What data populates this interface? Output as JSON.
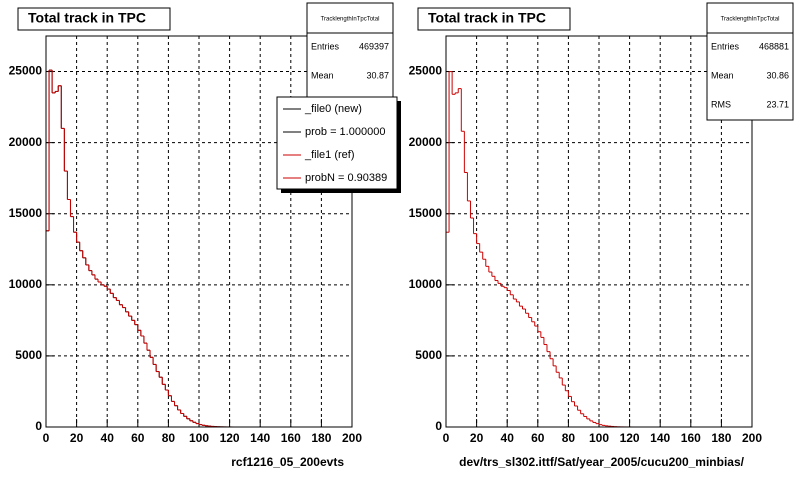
{
  "chart_data": [
    {
      "type": "histogram",
      "title": "Total track in TPC",
      "xlabel": "rcf1216_05_200evts",
      "bins": [
        0,
        2,
        4,
        6,
        8,
        10,
        12,
        14,
        16,
        18,
        20,
        22,
        24,
        26,
        28,
        30,
        32,
        34,
        36,
        38,
        40,
        42,
        44,
        46,
        48,
        50,
        52,
        54,
        56,
        58,
        60,
        62,
        64,
        66,
        68,
        70,
        72,
        74,
        76,
        78,
        80,
        82,
        84,
        86,
        88,
        90,
        92,
        94,
        96,
        98,
        100,
        102,
        104,
        106,
        108,
        110,
        112,
        114,
        116,
        118,
        120,
        122,
        124,
        126,
        128,
        130,
        132,
        134,
        136,
        138,
        140,
        142,
        144,
        146,
        148,
        150,
        152,
        154,
        156,
        158,
        160,
        162,
        164,
        166,
        168,
        170,
        172,
        174,
        176,
        178,
        180,
        182,
        184,
        186,
        188,
        190,
        192,
        194,
        196,
        198,
        200
      ],
      "xlim": [
        0,
        200
      ],
      "xticks": [
        0,
        20,
        40,
        60,
        80,
        100,
        120,
        140,
        160,
        180,
        200
      ],
      "ylim": [
        0,
        27500
      ],
      "yticks": [
        0,
        5000,
        10000,
        15000,
        20000,
        25000
      ],
      "grid": true,
      "stats": {
        "title": "TracklengthInTpcTotal",
        "rows": [
          {
            "label": "Entries",
            "value": 469397
          },
          {
            "label": "Mean",
            "value": 30.87
          }
        ]
      },
      "series": [
        {
          "name": "_file0 (new)",
          "note": "prob = 1.000000",
          "color": "#000000",
          "values": [
            13800,
            25100,
            23500,
            23600,
            24000,
            21000,
            18000,
            16000,
            14800,
            13700,
            13000,
            12400,
            11900,
            11400,
            11000,
            10700,
            10400,
            10200,
            10000,
            9900,
            9700,
            9400,
            9100,
            8900,
            8600,
            8400,
            8100,
            7800,
            7500,
            7200,
            6800,
            6400,
            5900,
            5400,
            4900,
            4400,
            3900,
            3500,
            3000,
            2600,
            2200,
            1800,
            1500,
            1200,
            950,
            750,
            580,
            440,
            330,
            240,
            170,
            120,
            85,
            60,
            40,
            25,
            15,
            10,
            6,
            3,
            2,
            0,
            0,
            0,
            0,
            0,
            0,
            0,
            0,
            0,
            0,
            0,
            0,
            0,
            0,
            0,
            0,
            0,
            0,
            0,
            0,
            0,
            0,
            0,
            0,
            0,
            0,
            0,
            0,
            0,
            0,
            0,
            0,
            0,
            0,
            0,
            0,
            0,
            0,
            0
          ]
        },
        {
          "name": "_file1 (ref)",
          "note": "probN = 0.90389",
          "color": "#cc0000",
          "values": [
            13800,
            25100,
            23500,
            23600,
            24000,
            21000,
            18000,
            16000,
            14800,
            13700,
            13000,
            12400,
            11900,
            11400,
            11000,
            10700,
            10400,
            10200,
            10000,
            9900,
            9700,
            9400,
            9100,
            8900,
            8600,
            8400,
            8100,
            7800,
            7500,
            7200,
            6800,
            6400,
            5900,
            5400,
            4900,
            4400,
            3900,
            3500,
            3000,
            2600,
            2200,
            1800,
            1500,
            1200,
            950,
            750,
            580,
            440,
            330,
            240,
            170,
            120,
            85,
            60,
            40,
            25,
            15,
            10,
            6,
            3,
            2,
            0,
            0,
            0,
            0,
            0,
            0,
            0,
            0,
            0,
            0,
            0,
            0,
            0,
            0,
            0,
            0,
            0,
            0,
            0,
            0,
            0,
            0,
            0,
            0,
            0,
            0,
            0,
            0,
            0,
            0,
            0,
            0,
            0,
            0,
            0,
            0,
            0,
            0,
            0
          ]
        }
      ]
    },
    {
      "type": "histogram",
      "title": "Total track in TPC",
      "xlabel": "dev/trs_sl302.ittf/Sat/year_2005/cucu200_minbias/",
      "bins": [
        0,
        2,
        4,
        6,
        8,
        10,
        12,
        14,
        16,
        18,
        20,
        22,
        24,
        26,
        28,
        30,
        32,
        34,
        36,
        38,
        40,
        42,
        44,
        46,
        48,
        50,
        52,
        54,
        56,
        58,
        60,
        62,
        64,
        66,
        68,
        70,
        72,
        74,
        76,
        78,
        80,
        82,
        84,
        86,
        88,
        90,
        92,
        94,
        96,
        98,
        100,
        102,
        104,
        106,
        108,
        110,
        112,
        114,
        116,
        118,
        120,
        122,
        124,
        126,
        128,
        130,
        132,
        134,
        136,
        138,
        140,
        142,
        144,
        146,
        148,
        150,
        152,
        154,
        156,
        158,
        160,
        162,
        164,
        166,
        168,
        170,
        172,
        174,
        176,
        178,
        180,
        182,
        184,
        186,
        188,
        190,
        192,
        194,
        196,
        198,
        200
      ],
      "xlim": [
        0,
        200
      ],
      "xticks": [
        0,
        20,
        40,
        60,
        80,
        100,
        120,
        140,
        160,
        180,
        200
      ],
      "ylim": [
        0,
        27500
      ],
      "yticks": [
        0,
        5000,
        10000,
        15000,
        20000,
        25000
      ],
      "grid": true,
      "stats": {
        "title": "TracklengthInTpcTotal",
        "rows": [
          {
            "label": "Entries",
            "value": 468881
          },
          {
            "label": "Mean",
            "value": 30.86
          },
          {
            "label": "RMS",
            "value": 23.71
          }
        ]
      },
      "series": [
        {
          "name": "_file1 (ref)",
          "color": "#cc0000",
          "values": [
            13700,
            25000,
            23400,
            23500,
            23800,
            20800,
            17900,
            15900,
            14700,
            13600,
            12900,
            12300,
            11800,
            11300,
            10900,
            10600,
            10300,
            10100,
            9900,
            9800,
            9600,
            9300,
            9000,
            8800,
            8500,
            8300,
            8000,
            7700,
            7400,
            7100,
            6700,
            6300,
            5800,
            5300,
            4800,
            4300,
            3850,
            3450,
            2950,
            2550,
            2150,
            1780,
            1480,
            1180,
            930,
            740,
            570,
            430,
            320,
            235,
            165,
            115,
            80,
            58,
            38,
            24,
            14,
            9,
            5,
            3,
            2,
            0,
            0,
            0,
            0,
            0,
            0,
            0,
            0,
            0,
            0,
            0,
            0,
            0,
            0,
            0,
            0,
            0,
            0,
            0,
            0,
            0,
            0,
            0,
            0,
            0,
            0,
            0,
            0,
            0,
            0,
            0,
            0,
            0,
            0,
            0,
            0,
            0,
            0,
            0
          ]
        }
      ]
    }
  ]
}
